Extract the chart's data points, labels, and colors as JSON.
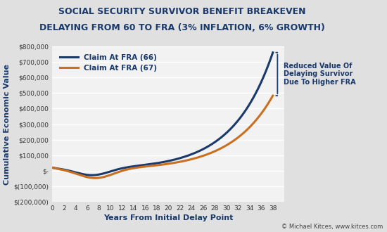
{
  "title_line1": "SOCIAL SECURITY SURVIVOR BENEFIT BREAKEVEN",
  "title_line2": "DELAYING FROM 60 TO FRA (3% INFLATION, 6% GROWTH)",
  "xlabel": "Years From Initial Delay Point",
  "ylabel": "Cumulative Economic Value",
  "legend_label_66": "Claim At FRA (66)",
  "legend_label_67": "Claim At FRA (67)",
  "annotation": "Reduced Value Of\nDelaying Survivor\nDue To Higher FRA",
  "copyright": "© Michael Kitces, www.kitces.com",
  "color_66": "#1a3a6b",
  "color_67": "#c87020",
  "background_color": "#e0e0e0",
  "plot_background": "#f2f2f2",
  "title_color": "#1a3a6b",
  "ylabel_color": "#1a3a6b",
  "xlabel_color": "#1a3a6b",
  "ylim_min": -200000,
  "ylim_max": 800000,
  "xlim_min": 0,
  "xlim_max": 40,
  "x_ticks": [
    0,
    2,
    4,
    6,
    8,
    10,
    12,
    14,
    16,
    18,
    20,
    22,
    24,
    26,
    28,
    30,
    32,
    34,
    36,
    38
  ],
  "y_ticks": [
    -200000,
    -100000,
    0,
    100000,
    200000,
    300000,
    400000,
    500000,
    600000,
    700000,
    800000
  ]
}
